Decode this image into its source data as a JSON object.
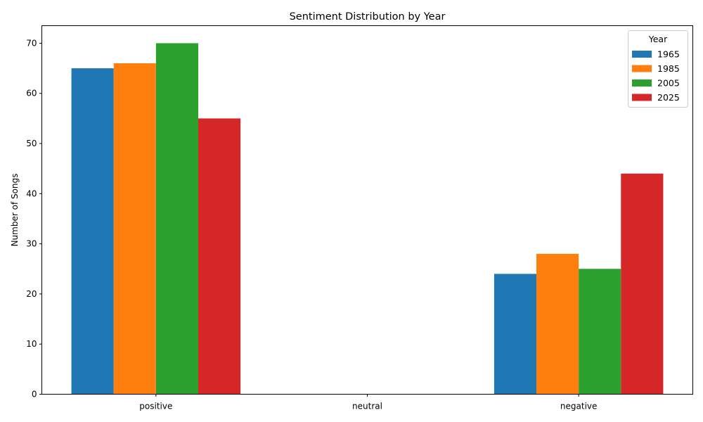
{
  "chart_data": {
    "type": "bar",
    "title": "Sentiment Distribution by Year",
    "xlabel": "",
    "ylabel": "Number of Songs",
    "categories": [
      "positive",
      "neutral",
      "negative"
    ],
    "series": [
      {
        "name": "1965",
        "values": [
          65,
          0,
          24
        ],
        "color": "#1f77b4"
      },
      {
        "name": "1985",
        "values": [
          66,
          0,
          28
        ],
        "color": "#ff7f0e"
      },
      {
        "name": "2005",
        "values": [
          70,
          0,
          25
        ],
        "color": "#2ca02c"
      },
      {
        "name": "2025",
        "values": [
          55,
          0,
          44
        ],
        "color": "#d62728"
      }
    ],
    "ylim": [
      0,
      73.5
    ],
    "yticks": [
      0,
      10,
      20,
      30,
      40,
      50,
      60,
      70
    ],
    "grid": false,
    "legend": {
      "title": "Year",
      "placement": "top-right"
    }
  }
}
